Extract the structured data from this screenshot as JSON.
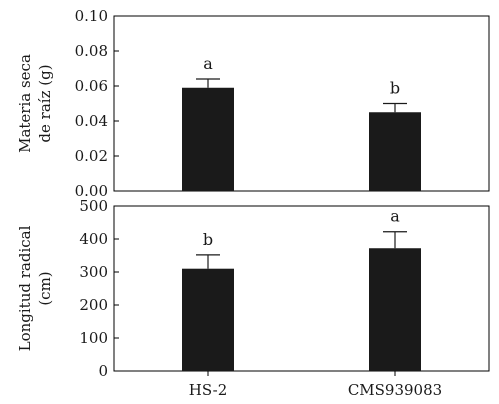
{
  "chart_data": [
    {
      "type": "bar",
      "categories": [
        "HS-2",
        "CMS939083"
      ],
      "values": [
        0.059,
        0.045
      ],
      "errors": [
        0.005,
        0.005
      ],
      "significance": [
        "a",
        "b"
      ],
      "ylabel": [
        "Materia seca",
        "de raíz (g)"
      ],
      "ylim": [
        0,
        0.1
      ],
      "yticks": [
        "0.00",
        "0.02",
        "0.04",
        "0.06",
        "0.08",
        "0.10"
      ],
      "ytick_values": [
        0,
        0.02,
        0.04,
        0.06,
        0.08,
        0.1
      ],
      "grid": false,
      "bar_color": "#1a1a1a"
    },
    {
      "type": "bar",
      "categories": [
        "HS-2",
        "CMS939083"
      ],
      "values": [
        310,
        372
      ],
      "errors": [
        42,
        50
      ],
      "significance": [
        "b",
        "a"
      ],
      "ylabel": [
        "Longitud radical",
        "(cm)"
      ],
      "ylim": [
        0,
        500
      ],
      "yticks": [
        "0",
        "100",
        "200",
        "300",
        "400",
        "500"
      ],
      "ytick_values": [
        0,
        100,
        200,
        300,
        400,
        500
      ],
      "grid": false,
      "bar_color": "#1a1a1a"
    }
  ]
}
